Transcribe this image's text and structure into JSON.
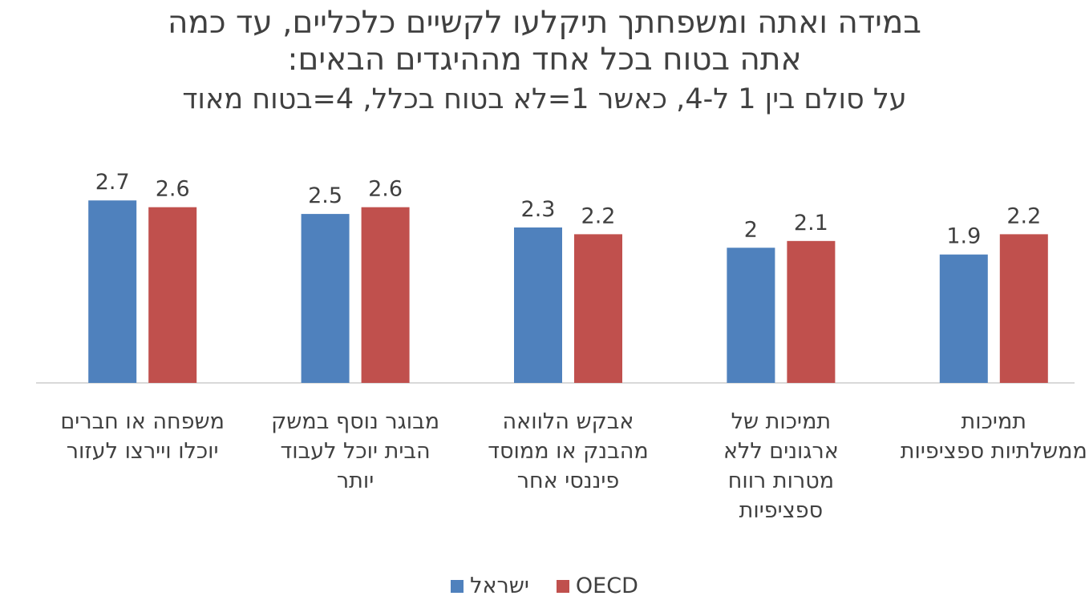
{
  "chart_data": {
    "type": "bar",
    "title": "במידה ואתה ומשפחתך תיקלעו לקשיים כלכליים, עד כמה אתה בטוח בכל אחד מההיגדים הבאים:",
    "title_lines": [
      "במידה ואתה ומשפחתך תיקלעו לקשיים כלכליים, עד כמה",
      "אתה בטוח בכל אחד מההיגדים הבאים:"
    ],
    "subtitle": "על סולם בין 1 ל-4, כאשר 1=לא בטוח בכלל, 4=בטוח מאוד",
    "categories": [
      "משפחה או חברים יוכלו ויירצו לעזור",
      "מבוגר נוסף במשק הבית יוכל לעבוד יותר",
      "אבקש הלוואה מהבנק או ממוסד פיננסי אחר",
      "תמיכות של ארגונים ללא מטרות רווח ספציפיות",
      "תמיכות ממשלתיות ספציפיות"
    ],
    "category_label_lines": [
      [
        "משפחה או חברים",
        "יוכלו ויירצו לעזור"
      ],
      [
        "מבוגר נוסף במשק",
        "הבית יוכל לעבוד",
        "יותר"
      ],
      [
        "אבקש הלוואה",
        "מהבנק או ממוסד",
        "פיננסי אחר"
      ],
      [
        "תמיכות של",
        "ארגונים ללא",
        "מטרות רווח",
        "ספציפיות"
      ],
      [
        "תמיכות",
        "ממשלתיות ספציפיות"
      ]
    ],
    "series": [
      {
        "name": "ישראל",
        "values": [
          2.7,
          2.5,
          2.3,
          2.0,
          1.9
        ],
        "labels": [
          "2.7",
          "2.5",
          "2.3",
          "2",
          "1.9"
        ],
        "color": "#4F81BD"
      },
      {
        "name": "OECD",
        "values": [
          2.6,
          2.6,
          2.2,
          2.1,
          2.2
        ],
        "labels": [
          "2.6",
          "2.6",
          "2.2",
          "2.1",
          "2.2"
        ],
        "color": "#C0504D"
      }
    ],
    "ylim": [
      0,
      2.75
    ],
    "grid": false,
    "legend_position": "bottom"
  }
}
